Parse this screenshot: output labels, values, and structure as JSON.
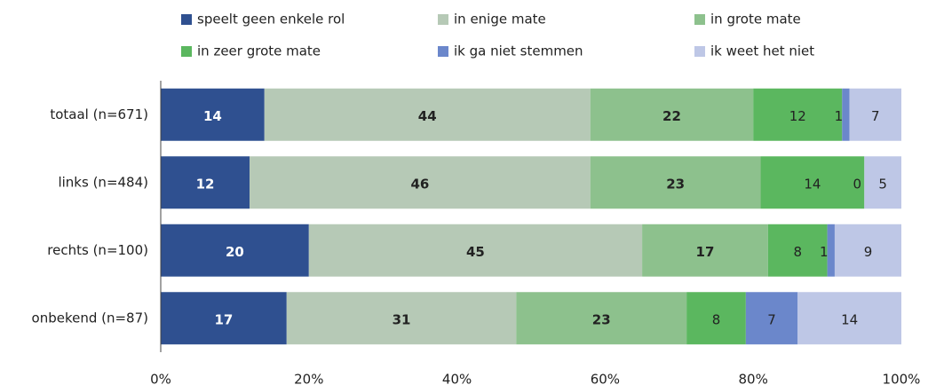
{
  "chart_data": {
    "type": "stacked_barh",
    "categories": [
      "totaal (n=671)",
      "links (n=484)",
      "rechts (n=100)",
      "onbekend (n=87)"
    ],
    "series": [
      {
        "name": "speelt geen enkele rol",
        "color": "#2f5090",
        "values": [
          14,
          12,
          20,
          17
        ]
      },
      {
        "name": "in enige mate",
        "color": "#b6c9b6",
        "values": [
          44,
          46,
          45,
          31
        ]
      },
      {
        "name": "in grote mate",
        "color": "#8dc18d",
        "values": [
          22,
          23,
          17,
          23
        ]
      },
      {
        "name": "in zeer grote mate",
        "color": "#5bb75f",
        "values": [
          12,
          14,
          8,
          8
        ]
      },
      {
        "name": "ik ga niet stemmen",
        "color": "#6b87cb",
        "values": [
          1,
          0,
          1,
          7
        ]
      },
      {
        "name": "ik weet het niet",
        "color": "#bec7e6",
        "values": [
          7,
          5,
          9,
          14
        ]
      }
    ],
    "xlim": [
      0,
      100
    ],
    "xticks": [
      {
        "value": 0,
        "label": "0%"
      },
      {
        "value": 20,
        "label": "20%"
      },
      {
        "value": 40,
        "label": "40%"
      },
      {
        "value": 60,
        "label": "60%"
      },
      {
        "value": 80,
        "label": "80%"
      },
      {
        "value": 100,
        "label": "100%"
      }
    ],
    "legend": "top"
  }
}
